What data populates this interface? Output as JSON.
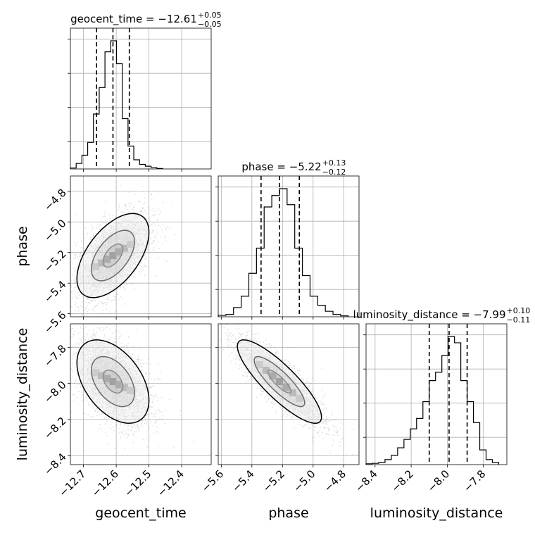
{
  "chart_data": {
    "type": "corner",
    "parameters": [
      {
        "name": "geocent_time",
        "label": "geocent_time",
        "median": -12.61,
        "plus": 0.05,
        "minus": 0.05,
        "title_main": "geocent_time = −12.61",
        "title_plus": "+0.05",
        "title_minus": "−0.05",
        "range": [
          -12.74,
          -12.31
        ],
        "ticks": [
          -12.7,
          -12.6,
          -12.5,
          -12.4
        ],
        "tick_labels": [
          "−12.7",
          "−12.6",
          "−12.5",
          "−12.4"
        ]
      },
      {
        "name": "phase",
        "label": "phase",
        "median": -5.22,
        "plus": 0.13,
        "minus": 0.12,
        "title_main": "phase = −5.22",
        "title_plus": "+0.13",
        "title_minus": "−0.12",
        "range": [
          -5.62,
          -4.7
        ],
        "ticks": [
          -5.6,
          -5.4,
          -5.2,
          -5.0,
          -4.8
        ],
        "tick_labels": [
          "−5.6",
          "−5.4",
          "−5.2",
          "−5.0",
          "−4.8"
        ]
      },
      {
        "name": "luminosity_distance",
        "label": "luminosity_distance",
        "median": -7.99,
        "plus": 0.1,
        "minus": 0.11,
        "title_main": "luminosity_distance = −7.99",
        "title_plus": "+0.10",
        "title_minus": "−0.11",
        "range": [
          -8.45,
          -7.67
        ],
        "ticks": [
          -8.4,
          -8.2,
          -8.0,
          -7.8
        ],
        "tick_labels": [
          "−8.4",
          "−8.2",
          "−8.0",
          "−7.8"
        ]
      }
    ],
    "y_ticks": {
      "phase": {
        "ticks": [
          -4.8,
          -5.0,
          -5.2,
          -5.4,
          -5.6
        ],
        "labels": [
          "−4.8",
          "−5.0",
          "−5.2",
          "−5.4",
          "−5.6"
        ]
      },
      "luminosity_distance": {
        "ticks": [
          -7.8,
          -8.0,
          -8.2,
          -8.4
        ],
        "labels": [
          "−7.8",
          "−8.0",
          "−8.2",
          "−8.4"
        ]
      }
    },
    "histograms": {
      "geocent_time": {
        "edges": [
          -12.74,
          -12.7224,
          -12.7048,
          -12.6872,
          -12.6696,
          -12.652,
          -12.6344,
          -12.6168,
          -12.5992,
          -12.5816,
          -12.564,
          -12.5464,
          -12.5288,
          -12.5112,
          -12.4936,
          -12.476,
          -12.4584
        ],
        "counts": [
          2,
          12,
          30,
          58,
          120,
          178,
          256,
          280,
          230,
          110,
          50,
          20,
          10,
          6,
          3,
          1
        ]
      },
      "phase": {
        "edges": [
          -5.62,
          -5.57,
          -5.52,
          -5.47,
          -5.42,
          -5.37,
          -5.32,
          -5.27,
          -5.22,
          -5.17,
          -5.12,
          -5.07,
          -5.02,
          -4.97,
          -4.92,
          -4.87,
          -4.82,
          -4.77
        ],
        "counts": [
          3,
          5,
          20,
          45,
          95,
          150,
          240,
          265,
          280,
          245,
          150,
          90,
          45,
          25,
          12,
          5,
          2
        ]
      },
      "luminosity_distance": {
        "edges": [
          -8.45,
          -8.415,
          -8.38,
          -8.345,
          -8.31,
          -8.275,
          -8.24,
          -8.205,
          -8.17,
          -8.135,
          -8.1,
          -8.065,
          -8.03,
          -7.995,
          -7.96,
          -7.925,
          -7.89,
          -7.855,
          -7.82,
          -7.785,
          -7.75,
          -7.715
        ],
        "counts": [
          2,
          3,
          5,
          12,
          22,
          40,
          60,
          85,
          110,
          150,
          200,
          220,
          260,
          305,
          290,
          200,
          150,
          100,
          35,
          12,
          5
        ]
      }
    },
    "quantile_lines": "16%, 50%, 84%",
    "grid": true,
    "sample_color": "#808080",
    "line_color": "#000000"
  }
}
